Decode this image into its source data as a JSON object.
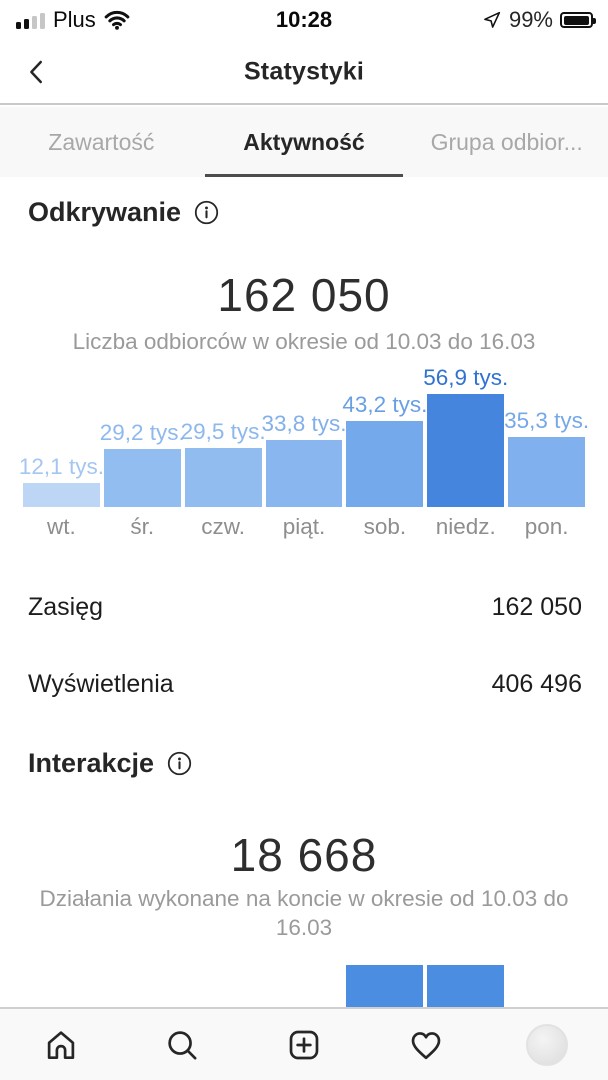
{
  "colors": {
    "accent_blue": "#4585de",
    "partial_bar_blue": "#4a8de1",
    "text_primary": "#262626",
    "text_secondary": "#9a9a9a",
    "tab_inactive": "#a8a8a8"
  },
  "status_bar": {
    "carrier": "Plus",
    "time": "10:28",
    "battery_percent": "99%"
  },
  "header": {
    "title": "Statystyki"
  },
  "tabs": [
    {
      "label": "Zawartość",
      "active": false
    },
    {
      "label": "Aktywność",
      "active": true
    },
    {
      "label": "Grupa odbior...",
      "active": false
    }
  ],
  "discovery": {
    "title": "Odkrywanie",
    "headline_value": "162 050",
    "caption": "Liczba odbiorców w okresie od 10.03 do 16.03",
    "rows": [
      {
        "label": "Zasięg",
        "value": "162 050"
      },
      {
        "label": "Wyświetlenia",
        "value": "406 496"
      }
    ]
  },
  "interactions": {
    "title": "Interakcje",
    "headline_value": "18 668",
    "caption": "Działania wykonane na koncie w okresie od 10.03 do 16.03"
  },
  "chart_data": [
    {
      "type": "bar",
      "title": "Odkrywanie – liczba odbiorców wg dnia tygodnia",
      "categories": [
        "wt.",
        "śr.",
        "czw.",
        "piąt.",
        "sob.",
        "niedz.",
        "pon."
      ],
      "values": [
        12100,
        29200,
        29500,
        33800,
        43200,
        56900,
        35300
      ],
      "value_labels": [
        "12,1 tys.",
        "29,2 tys.",
        "29,5 tys.",
        "33,8 tys.",
        "43,2 tys.",
        "56,9 tys.",
        "35,3 tys."
      ],
      "bar_colors": [
        "#bdd6f5",
        "#92bdf0",
        "#91bcf0",
        "#89b6ee",
        "#74aaeb",
        "#4585de",
        "#80b1ee"
      ],
      "label_colors": [
        "#a5c6f0",
        "#8db9ef",
        "#8cb8ee",
        "#82b0ea",
        "#699fe4",
        "#2f72d2",
        "#76a8e8"
      ],
      "ylim": [
        0,
        56900
      ],
      "grid": false,
      "legend": false
    },
    {
      "type": "bar",
      "title": "Interakcje wg dnia – wykres częściowo widoczny u dołu ekranu",
      "visible_bar_count": 2,
      "bar_color": "#4a8de1"
    }
  ],
  "bottom_nav": {
    "items": [
      {
        "name": "home"
      },
      {
        "name": "search"
      },
      {
        "name": "create"
      },
      {
        "name": "activity"
      },
      {
        "name": "profile"
      }
    ]
  },
  "icons": {
    "back": "chevron-left",
    "info": "circled-i",
    "signal": "cellular-bars",
    "wifi": "wifi-arcs",
    "location": "navigation-arrow",
    "battery": "battery-full"
  }
}
